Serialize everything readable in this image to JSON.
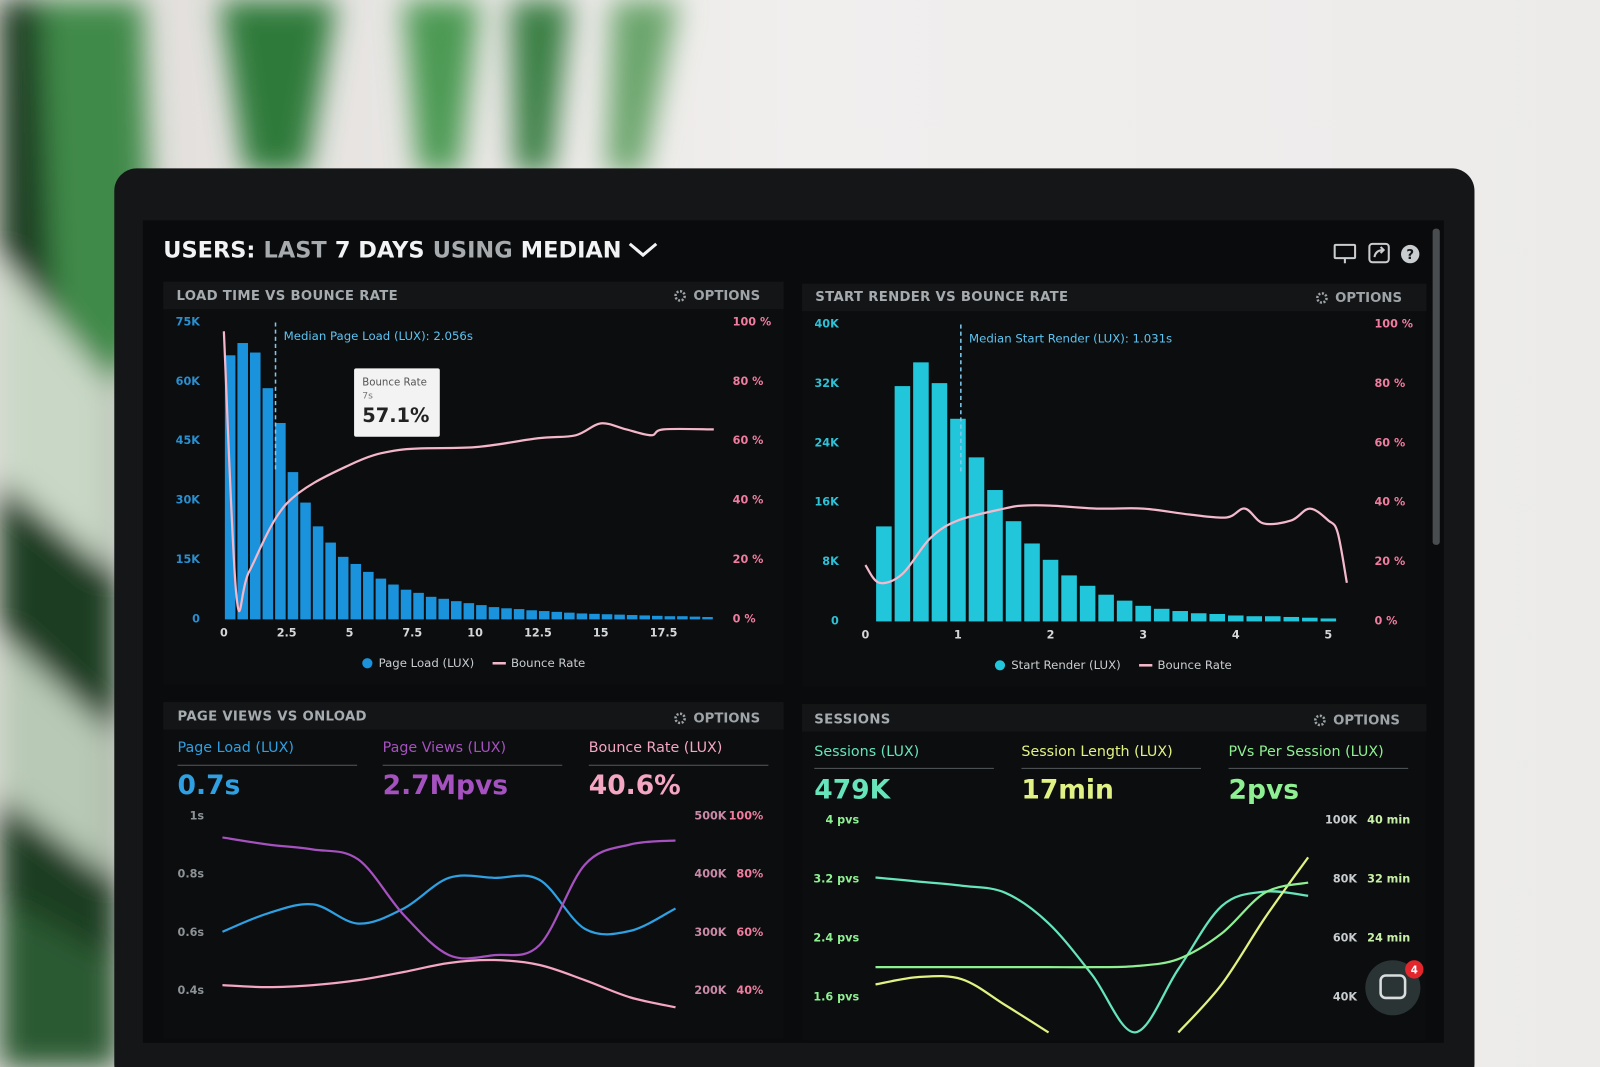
{
  "header": {
    "words": [
      "USERS:",
      "LAST",
      "7 DAYS",
      "USING",
      "MEDIAN"
    ]
  },
  "chat_badge": 4,
  "chart_data": [
    {
      "type": "histogram",
      "title": "LOAD TIME VS BOUNCE RATE",
      "options": "OPTIONS",
      "bar_series": {
        "name": "Page Load (LUX)",
        "color": "#1b93dc",
        "bins": [
          0,
          0.5,
          1,
          1.5,
          2,
          2.5,
          3,
          3.5,
          4,
          4.5,
          5,
          5.5,
          6,
          6.5,
          7,
          7.5,
          8,
          8.5,
          9,
          9.5,
          10,
          10.5,
          11,
          11.5,
          12,
          12.5,
          13,
          13.5,
          14,
          14.5,
          15,
          15.5,
          16,
          16.5,
          17,
          17.5,
          18,
          18.5,
          19,
          19.5
        ],
        "counts": [
          66700,
          69800,
          67400,
          58400,
          49600,
          37200,
          29500,
          23500,
          19400,
          15800,
          14000,
          12000,
          10300,
          8800,
          7500,
          6700,
          5700,
          5200,
          4600,
          4100,
          3600,
          3100,
          2800,
          2600,
          2300,
          2100,
          1900,
          1700,
          1500,
          1400,
          1300,
          1200,
          1100,
          1000,
          900,
          800,
          800,
          700,
          600
        ]
      },
      "series": [
        {
          "name": "Bounce Rate",
          "color": "#f4b6c9",
          "axis": "y2",
          "x": [
            0,
            0.5,
            1,
            2.5,
            5,
            7,
            10,
            12.5,
            14,
            15,
            16,
            17,
            17.5,
            19.5
          ],
          "values": [
            97,
            8,
            16,
            39,
            52,
            57.1,
            58,
            61,
            62,
            66,
            64,
            62,
            64,
            64
          ]
        }
      ],
      "median": {
        "value": 2.056,
        "label": "Median Page Load (LUX): 2.056s"
      },
      "tooltip": {
        "title": "Bounce Rate",
        "x_label": "7s",
        "value_label": "57.1%"
      },
      "xlim": [
        -0.3,
        19.6
      ],
      "xticks": [
        0,
        2.5,
        5,
        7.5,
        10,
        12.5,
        15,
        17.5
      ],
      "ylim": [
        0,
        75000
      ],
      "yticks": [
        0,
        {
          "value": 15000,
          "label": "15K"
        },
        {
          "value": 30000,
          "label": "30K"
        },
        {
          "value": 45000,
          "label": "45K"
        },
        {
          "value": 60000,
          "label": "60K"
        },
        {
          "value": 75000,
          "label": "75K"
        }
      ],
      "y2lim": [
        0,
        100
      ],
      "y2ticks": [
        {
          "value": 0,
          "label": "0 %"
        },
        {
          "value": 20,
          "label": "20 %"
        },
        {
          "value": 40,
          "label": "40 %"
        },
        {
          "value": 60,
          "label": "60 %"
        },
        {
          "value": 80,
          "label": "80 %"
        },
        {
          "value": 100,
          "label": "100 %"
        }
      ]
    },
    {
      "type": "histogram",
      "title": "START RENDER VS BOUNCE RATE",
      "options": "OPTIONS",
      "bar_series": {
        "name": "Start Render (LUX)",
        "color": "#22c6da",
        "bins": [
          0.1,
          0.3,
          0.5,
          0.7,
          0.9,
          1.1,
          1.3,
          1.5,
          1.7,
          1.9,
          2.1,
          2.3,
          2.5,
          2.7,
          2.9,
          3.1,
          3.3,
          3.5,
          3.7,
          3.9,
          4.1,
          4.3,
          4.5,
          4.7,
          4.9,
          5.1
        ],
        "counts": [
          12800,
          31700,
          34900,
          32100,
          27300,
          22100,
          17700,
          13500,
          10500,
          8300,
          6200,
          4800,
          3600,
          2800,
          2100,
          1700,
          1400,
          1100,
          1000,
          800,
          700,
          700,
          600,
          500,
          400
        ]
      },
      "series": [
        {
          "name": "Bounce Rate",
          "color": "#f4b9cc",
          "axis": "y2",
          "x": [
            0,
            0.15,
            0.4,
            0.7,
            1,
            1.5,
            1.7,
            2,
            2.5,
            3,
            3.5,
            3.9,
            4.1,
            4.3,
            4.6,
            4.8,
            5,
            5.1,
            5.2
          ],
          "values": [
            19,
            13,
            16,
            28,
            34,
            38,
            39,
            39,
            38,
            38,
            36,
            35,
            38,
            33,
            34,
            38,
            34,
            30,
            13
          ]
        }
      ],
      "median": {
        "value": 1.031,
        "label": "Median Start Render (LUX): 1.031s"
      },
      "xlim": [
        -0.1,
        5.3
      ],
      "xticks": [
        0,
        1,
        2,
        3,
        4,
        5
      ],
      "ylim": [
        0,
        40000
      ],
      "yticks": [
        0,
        {
          "value": 8000,
          "label": "8K"
        },
        {
          "value": 16000,
          "label": "16K"
        },
        {
          "value": 24000,
          "label": "24K"
        },
        {
          "value": 32000,
          "label": "32K"
        },
        {
          "value": 40000,
          "label": "40K"
        }
      ],
      "y2lim": [
        0,
        100
      ],
      "y2ticks": [
        {
          "value": 0,
          "label": "0 %"
        },
        {
          "value": 20,
          "label": "20 %"
        },
        {
          "value": 40,
          "label": "40 %"
        },
        {
          "value": 60,
          "label": "60 %"
        },
        {
          "value": 80,
          "label": "80 %"
        },
        {
          "value": 100,
          "label": "100 %"
        }
      ]
    },
    {
      "type": "line",
      "title": "PAGE VIEWS VS ONLOAD",
      "options": "OPTIONS",
      "categories": [
        null,
        null,
        null,
        null,
        null,
        null,
        null,
        null,
        null,
        null,
        null
      ],
      "series": [
        {
          "name": "Page Load (LUX)",
          "summary": "0.7s",
          "color": "#2fa0e2",
          "axis": "y",
          "values": [
            0.604,
            0.667,
            0.698,
            0.632,
            0.684,
            0.789,
            0.789,
            0.782,
            0.614,
            0.607,
            0.684
          ]
        },
        {
          "name": "Page Views (LUX)",
          "summary": "2.7Mpvs",
          "color": "#a552c0",
          "axis": "y2",
          "values": [
            463800,
            451700,
            443100,
            425900,
            331000,
            262000,
            262000,
            279300,
            417200,
            451700,
            458600
          ]
        },
        {
          "name": "Bounce Rate (LUX)",
          "summary": "40.6%",
          "color": "#f4a6c2",
          "axis": "y3",
          "values": [
            42.1,
            41.4,
            42.1,
            43.8,
            46.6,
            49.7,
            50.7,
            49,
            43.8,
            37.9,
            34.5
          ]
        }
      ],
      "ylim": [
        0.3,
        1
      ],
      "yticks": [
        {
          "value": 0.4,
          "label": "0.4s"
        },
        {
          "value": 0.6,
          "label": "0.6s"
        },
        {
          "value": 0.8,
          "label": "0.8s"
        },
        {
          "value": 1,
          "label": "1s"
        }
      ],
      "y2lim": [
        150000,
        500000
      ],
      "y2ticks": [
        {
          "value": 200000,
          "label": "200K"
        },
        {
          "value": 300000,
          "label": "300K"
        },
        {
          "value": 400000,
          "label": "400K"
        },
        {
          "value": 500000,
          "label": "500K"
        }
      ],
      "y3lim": [
        30,
        100
      ],
      "y3ticks": [
        {
          "value": 40,
          "label": "40%"
        },
        {
          "value": 60,
          "label": "60%"
        },
        {
          "value": 80,
          "label": "80%"
        },
        {
          "value": 100,
          "label": "100%"
        }
      ]
    },
    {
      "type": "line",
      "title": "SESSIONS",
      "options": "OPTIONS",
      "categories": [
        null,
        null,
        null,
        null,
        null,
        null,
        null,
        null,
        null,
        null,
        null
      ],
      "series": [
        {
          "name": "Sessions (LUX)",
          "summary": "479K",
          "color": "#66e4ba",
          "axis": "y2",
          "values": [
            80700,
            79300,
            77900,
            75500,
            65200,
            47900,
            28300,
            49700,
            71000,
            75900,
            74500
          ]
        },
        {
          "name": "Session Length (LUX)",
          "summary": "17min",
          "color": "#e0f284",
          "axis": "y3",
          "values": [
            17.8,
            18.8,
            18.5,
            15,
            11.3,
            null,
            null,
            11.3,
            17.8,
            26.8,
            35
          ]
        },
        {
          "name": "PVs Per Session (LUX)",
          "summary": "2pvs",
          "color": "#8ef092",
          "axis": "y",
          "values": [
            2.014,
            2.014,
            2.014,
            2.014,
            2.014,
            2.014,
            2.028,
            2.124,
            2.469,
            3.021,
            3.159
          ]
        }
      ],
      "ylim": [
        1.1,
        4
      ],
      "yticks": [
        {
          "value": 1.6,
          "label": "1.6 pvs"
        },
        {
          "value": 2.4,
          "label": "2.4 pvs"
        },
        {
          "value": 3.2,
          "label": "3.2 pvs"
        },
        {
          "value": 4,
          "label": "4 pvs"
        }
      ],
      "y2lim": [
        27500,
        100000
      ],
      "y2ticks": [
        {
          "value": 40000,
          "label": "40K"
        },
        {
          "value": 60000,
          "label": "60K"
        },
        {
          "value": 80000,
          "label": "80K"
        },
        {
          "value": 100000,
          "label": "100K"
        }
      ],
      "y3lim": [
        11,
        40
      ],
      "y3ticks": [
        {
          "value": 24,
          "label": "24 min"
        },
        {
          "value": 32,
          "label": "32 min"
        },
        {
          "value": 40,
          "label": "40 min"
        }
      ]
    }
  ]
}
